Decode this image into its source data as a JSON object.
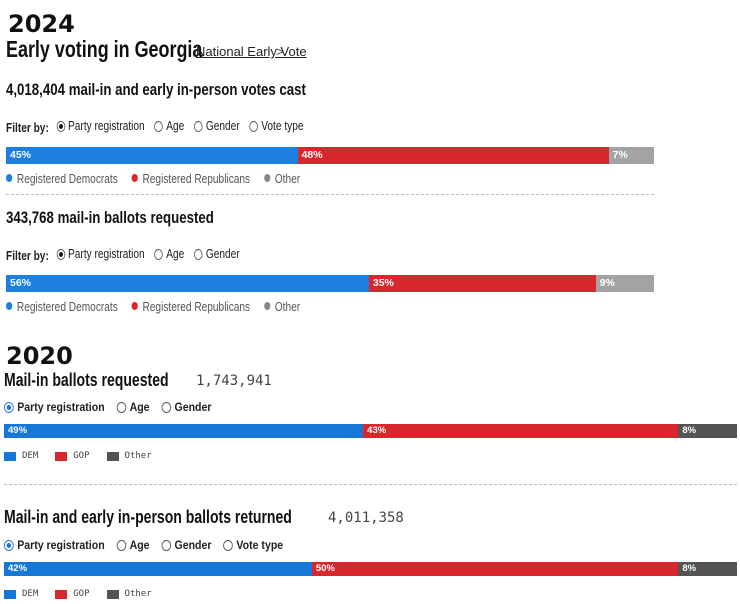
{
  "y2024": {
    "year": "2024",
    "title": "Early voting in Georgia",
    "national_link": "National Early Vote",
    "chevron": ">",
    "sections": [
      {
        "count": "4,018,404",
        "label": "mail-in and early in-person votes cast",
        "filter_label": "Filter by:",
        "options": [
          "Party registration",
          "Age",
          "Gender",
          "Vote type"
        ],
        "selected": "Party registration",
        "bar": [
          {
            "label": "45%",
            "value": 45,
            "color": "#1a7fe0"
          },
          {
            "label": "48%",
            "value": 48,
            "color": "#d8282e"
          },
          {
            "label": "7%",
            "value": 7,
            "color": "#a3a3a3"
          }
        ],
        "legend": [
          "Registered Democrats",
          "Registered Republicans",
          "Other"
        ]
      },
      {
        "count": "343,768",
        "label": "mail-in ballots requested",
        "filter_label": "Filter by:",
        "options": [
          "Party registration",
          "Age",
          "Gender"
        ],
        "selected": "Party registration",
        "bar": [
          {
            "label": "56%",
            "value": 56,
            "color": "#1a7fe0"
          },
          {
            "label": "35%",
            "value": 35,
            "color": "#d8282e"
          },
          {
            "label": "9%",
            "value": 9,
            "color": "#a3a3a3"
          }
        ],
        "legend": [
          "Registered Democrats",
          "Registered Republicans",
          "Other"
        ]
      }
    ],
    "legend_colors": [
      "#1a7fe0",
      "#d8282e",
      "#888888"
    ]
  },
  "y2020": {
    "year": "2020",
    "sections": [
      {
        "title": "Mail-in ballots requested",
        "count": "1,743,941",
        "options": [
          "Party registration",
          "Age",
          "Gender"
        ],
        "selected": "Party registration",
        "bar": [
          {
            "label": "49%",
            "value": 49,
            "color": "#1577d6"
          },
          {
            "label": "43%",
            "value": 43,
            "color": "#d8282e"
          },
          {
            "label": "8%",
            "value": 8,
            "color": "#545454"
          }
        ],
        "legend": [
          "DEM",
          "GOP",
          "Other"
        ]
      },
      {
        "title": "Mail-in and early in-person ballots returned",
        "count": "4,011,358",
        "options": [
          "Party registration",
          "Age",
          "Gender",
          "Vote type"
        ],
        "selected": "Party registration",
        "bar": [
          {
            "label": "42%",
            "value": 42,
            "color": "#1577d6"
          },
          {
            "label": "50%",
            "value": 50,
            "color": "#d8282e"
          },
          {
            "label": "8%",
            "value": 8,
            "color": "#545454"
          }
        ],
        "legend": [
          "DEM",
          "GOP",
          "Other"
        ]
      }
    ],
    "legend_colors": [
      "#1577d6",
      "#d8282e",
      "#545454"
    ]
  }
}
